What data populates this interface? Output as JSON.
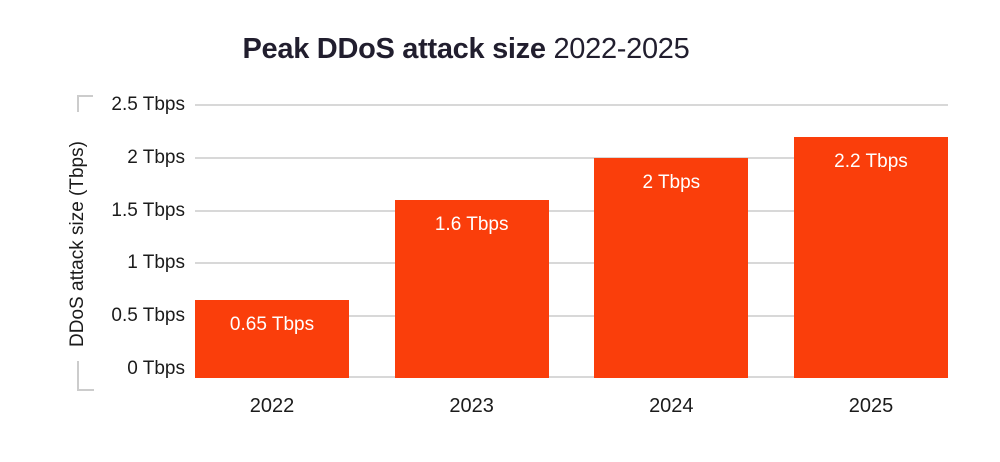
{
  "title": {
    "main": "Peak DDoS attack size",
    "suffix": "2022-2025"
  },
  "y_axis": {
    "label": "DDoS attack size (Tbps)",
    "ticks": [
      {
        "label": "2.5 Tbps",
        "value": 2.5
      },
      {
        "label": "2 Tbps",
        "value": 2.0
      },
      {
        "label": "1.5 Tbps",
        "value": 1.5
      },
      {
        "label": "1 Tbps",
        "value": 1.0
      },
      {
        "label": "0.5 Tbps",
        "value": 0.5
      },
      {
        "label": "0 Tbps",
        "value": 0.0
      }
    ]
  },
  "chart_data": {
    "type": "bar",
    "title": "Peak DDoS attack size 2022-2025",
    "categories": [
      "2022",
      "2023",
      "2024",
      "2025"
    ],
    "values": [
      0.65,
      1.6,
      2.0,
      2.2
    ],
    "value_labels": [
      "0.65 Tbps",
      "1.6 Tbps",
      "2 Tbps",
      "2.2 Tbps"
    ],
    "xlabel": "",
    "ylabel": "DDoS attack size (Tbps)",
    "ylim": [
      0,
      2.5
    ],
    "grid": true,
    "legend": "none",
    "colors": {
      "bar": "#fa3e0b",
      "gridline": "#d8d8d8",
      "axis_bracket": "#cccccc",
      "title_text": "#211e2e",
      "tick_text": "#1b1b1b",
      "bar_label_text": "#ffffff"
    }
  }
}
